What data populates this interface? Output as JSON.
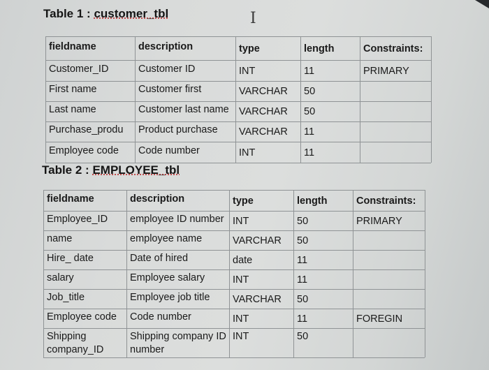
{
  "table1": {
    "caption_prefix": "Table 1 : ",
    "caption_name": "customer_tbl",
    "headers": [
      "fieldname",
      "description",
      "type",
      "length",
      "Constraints:"
    ],
    "rows": [
      [
        "Customer_ID",
        "Customer ID",
        "INT",
        "11",
        "PRIMARY"
      ],
      [
        "First name",
        "Customer first",
        "VARCHAR",
        "50",
        ""
      ],
      [
        "Last name",
        "Customer last name",
        "VARCHAR",
        "50",
        ""
      ],
      [
        "Purchase_produ",
        "Product purchase",
        "VARCHAR",
        "11",
        ""
      ],
      [
        "Employee code",
        "Code number",
        "INT",
        "11",
        ""
      ]
    ]
  },
  "table2": {
    "caption_prefix": "Table 2 : ",
    "caption_name": "EMPLOYEE_tbl",
    "headers": [
      "fieldname",
      "description",
      "type",
      "length",
      "Constraints:"
    ],
    "rows": [
      [
        "Employee_ID",
        "employee ID number",
        "INT",
        "50",
        "PRIMARY"
      ],
      [
        "name",
        "employee name",
        "VARCHAR",
        "50",
        ""
      ],
      [
        "Hire_ date",
        "Date of hired",
        "date",
        "11",
        ""
      ],
      [
        "salary",
        "Employee salary",
        "INT",
        "11",
        ""
      ],
      [
        "Job_title",
        "Employee job title",
        "VARCHAR",
        "50",
        ""
      ],
      [
        "Employee code",
        "Code number",
        "INT",
        "11",
        "FOREGIN"
      ],
      [
        "Shipping company_ID",
        "Shipping company ID number",
        "INT",
        "50",
        ""
      ]
    ]
  }
}
